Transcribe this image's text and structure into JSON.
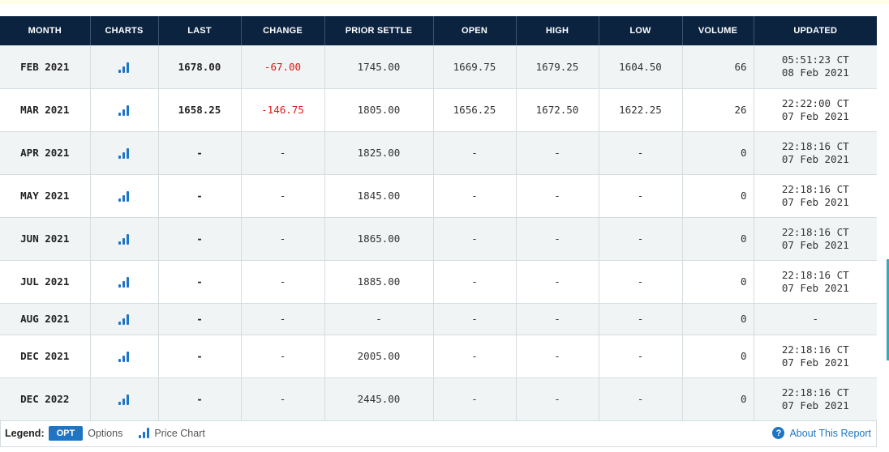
{
  "table": {
    "headers": {
      "month": "MONTH",
      "charts": "CHARTS",
      "last": "LAST",
      "change": "CHANGE",
      "prior_settle": "PRIOR SETTLE",
      "open": "OPEN",
      "high": "HIGH",
      "low": "LOW",
      "volume": "VOLUME",
      "updated": "UPDATED"
    },
    "rows": [
      {
        "month": "FEB 2021",
        "last": "1678.00",
        "change": "-67.00",
        "prior_settle": "1745.00",
        "open": "1669.75",
        "high": "1679.25",
        "low": "1604.50",
        "volume": "66",
        "updated_time": "05:51:23 CT",
        "updated_date": "08 Feb 2021"
      },
      {
        "month": "MAR 2021",
        "last": "1658.25",
        "change": "-146.75",
        "prior_settle": "1805.00",
        "open": "1656.25",
        "high": "1672.50",
        "low": "1622.25",
        "volume": "26",
        "updated_time": "22:22:00 CT",
        "updated_date": "07 Feb 2021"
      },
      {
        "month": "APR 2021",
        "last": "-",
        "change": "-",
        "prior_settle": "1825.00",
        "open": "-",
        "high": "-",
        "low": "-",
        "volume": "0",
        "updated_time": "22:18:16 CT",
        "updated_date": "07 Feb 2021"
      },
      {
        "month": "MAY 2021",
        "last": "-",
        "change": "-",
        "prior_settle": "1845.00",
        "open": "-",
        "high": "-",
        "low": "-",
        "volume": "0",
        "updated_time": "22:18:16 CT",
        "updated_date": "07 Feb 2021"
      },
      {
        "month": "JUN 2021",
        "last": "-",
        "change": "-",
        "prior_settle": "1865.00",
        "open": "-",
        "high": "-",
        "low": "-",
        "volume": "0",
        "updated_time": "22:18:16 CT",
        "updated_date": "07 Feb 2021"
      },
      {
        "month": "JUL 2021",
        "last": "-",
        "change": "-",
        "prior_settle": "1885.00",
        "open": "-",
        "high": "-",
        "low": "-",
        "volume": "0",
        "updated_time": "22:18:16 CT",
        "updated_date": "07 Feb 2021"
      },
      {
        "month": "AUG 2021",
        "last": "-",
        "change": "-",
        "prior_settle": "-",
        "open": "-",
        "high": "-",
        "low": "-",
        "volume": "0",
        "updated_time": "-",
        "updated_date": ""
      },
      {
        "month": "DEC 2021",
        "last": "-",
        "change": "-",
        "prior_settle": "2005.00",
        "open": "-",
        "high": "-",
        "low": "-",
        "volume": "0",
        "updated_time": "22:18:16 CT",
        "updated_date": "07 Feb 2021"
      },
      {
        "month": "DEC 2022",
        "last": "-",
        "change": "-",
        "prior_settle": "2445.00",
        "open": "-",
        "high": "-",
        "low": "-",
        "volume": "0",
        "updated_time": "22:18:16 CT",
        "updated_date": "07 Feb 2021"
      }
    ]
  },
  "legend": {
    "label": "Legend:",
    "opt_badge": "OPT",
    "opt_text": "Options",
    "chart_text": "Price Chart",
    "chart_icon": "bar-chart-icon",
    "help_icon": "question-circle-icon",
    "about_link": "About This Report"
  },
  "colors": {
    "header_bg": "#0c2340",
    "accent": "#1f74c4",
    "negative": "#e01818",
    "row_shade": "#f0f4f4"
  }
}
